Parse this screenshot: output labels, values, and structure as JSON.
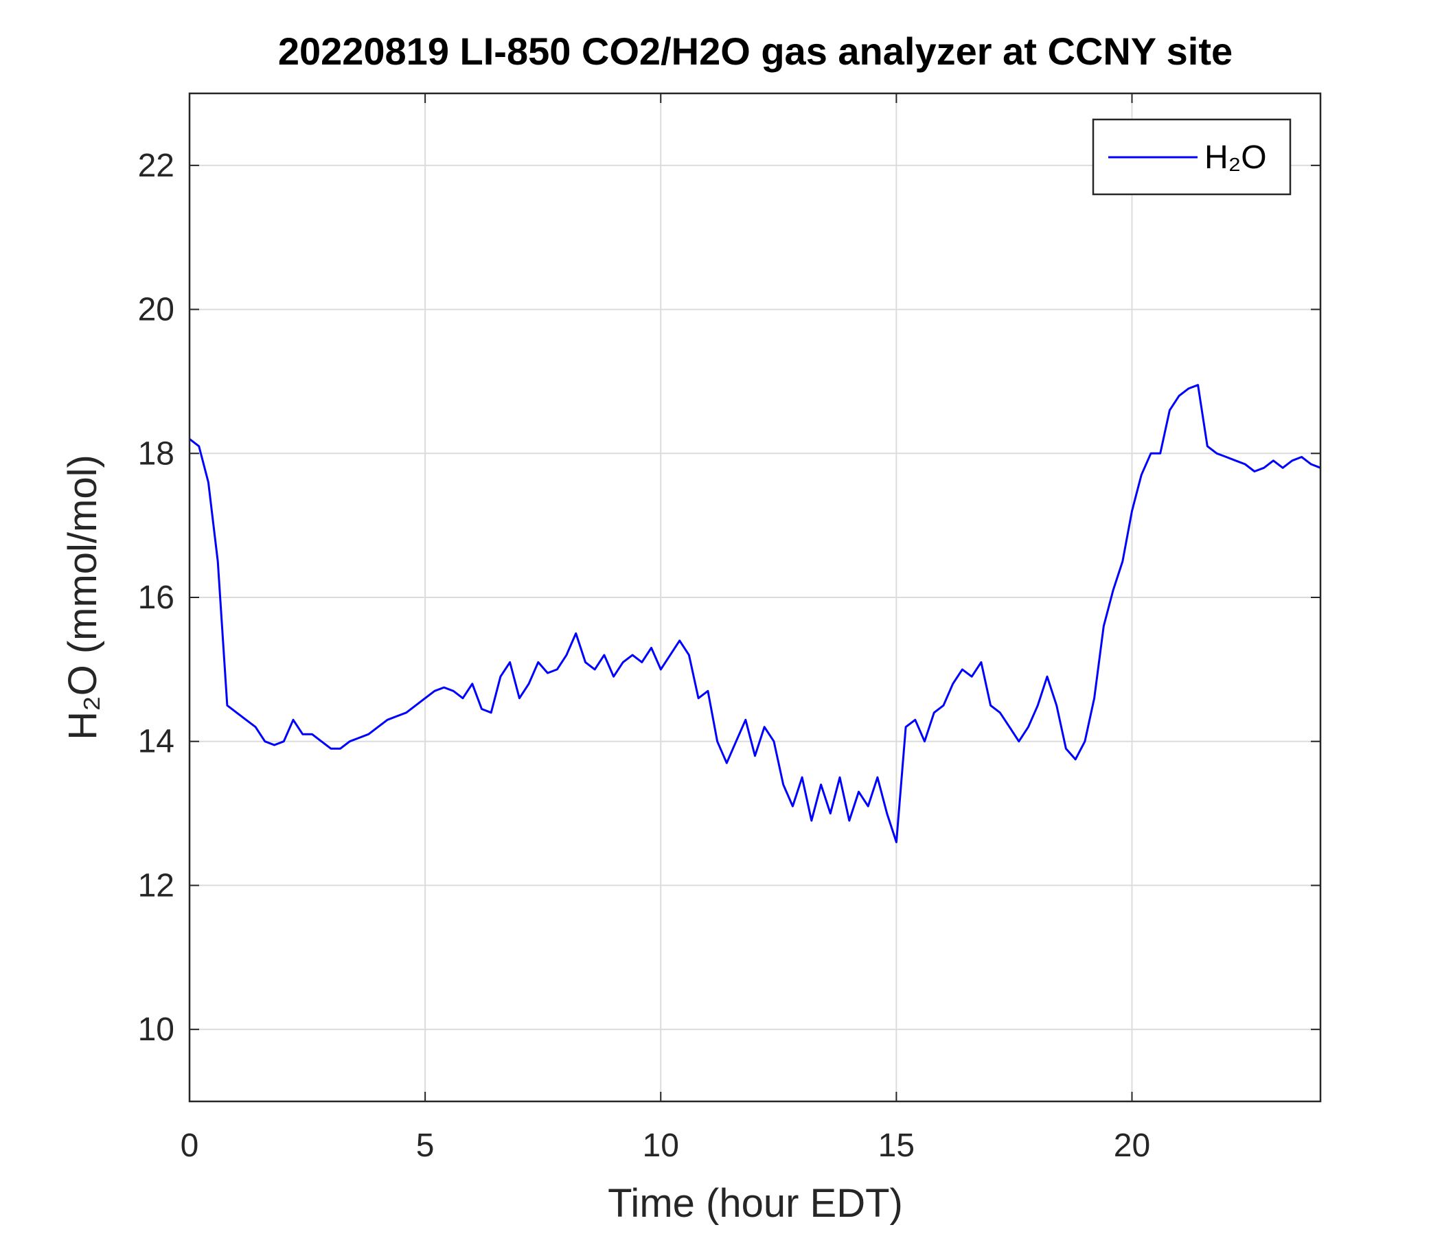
{
  "chart_data": {
    "type": "line",
    "title": "20220819 LI-850 CO2/H2O gas analyzer at CCNY site",
    "xlabel": "Time (hour EDT)",
    "ylabel": "H₂O (mmol/mol)",
    "x": [
      0,
      0.2,
      0.4,
      0.6,
      0.8,
      1,
      1.2,
      1.4,
      1.6,
      1.8,
      2,
      2.2,
      2.4,
      2.6,
      2.8,
      3,
      3.2,
      3.4,
      3.6,
      3.8,
      4,
      4.2,
      4.4,
      4.6,
      4.8,
      5,
      5.2,
      5.4,
      5.6,
      5.8,
      6,
      6.2,
      6.4,
      6.6,
      6.8,
      7,
      7.2,
      7.4,
      7.6,
      7.8,
      8,
      8.2,
      8.4,
      8.6,
      8.8,
      9,
      9.2,
      9.4,
      9.6,
      9.8,
      10,
      10.2,
      10.4,
      10.6,
      10.8,
      11,
      11.2,
      11.4,
      11.6,
      11.8,
      12,
      12.2,
      12.4,
      12.6,
      12.8,
      13,
      13.2,
      13.4,
      13.6,
      13.8,
      14,
      14.2,
      14.4,
      14.6,
      14.8,
      15,
      15.2,
      15.4,
      15.6,
      15.8,
      16,
      16.2,
      16.4,
      16.6,
      16.8,
      17,
      17.2,
      17.4,
      17.6,
      17.8,
      18,
      18.2,
      18.4,
      18.6,
      18.8,
      19,
      19.2,
      19.4,
      19.6,
      19.8,
      20,
      20.2,
      20.4,
      20.6,
      20.8,
      21,
      21.2,
      21.4,
      21.6,
      21.8,
      22,
      22.2,
      22.4,
      22.6,
      22.8,
      23,
      23.2,
      23.4,
      23.6,
      23.8,
      24
    ],
    "series": [
      {
        "name": "H₂O",
        "color": "#0000ff",
        "values": [
          18.2,
          18.1,
          17.6,
          16.5,
          14.5,
          14.4,
          14.3,
          14.2,
          14.0,
          13.95,
          14.0,
          14.3,
          14.1,
          14.1,
          14.0,
          13.9,
          13.9,
          14.0,
          14.05,
          14.1,
          14.2,
          14.3,
          14.35,
          14.4,
          14.5,
          14.6,
          14.7,
          14.75,
          14.7,
          14.6,
          14.8,
          14.45,
          14.4,
          14.9,
          15.1,
          14.6,
          14.8,
          15.1,
          14.95,
          15.0,
          15.2,
          15.5,
          15.1,
          15.0,
          15.2,
          14.9,
          15.1,
          15.2,
          15.1,
          15.3,
          15.0,
          15.2,
          15.4,
          15.2,
          14.6,
          14.7,
          14.0,
          13.7,
          14.0,
          14.3,
          13.8,
          14.2,
          14.0,
          13.4,
          13.1,
          13.5,
          12.9,
          13.4,
          13.0,
          13.5,
          12.9,
          13.3,
          13.1,
          13.5,
          13.0,
          12.6,
          14.2,
          14.3,
          14.0,
          14.4,
          14.5,
          14.8,
          15.0,
          14.9,
          15.1,
          14.5,
          14.4,
          14.2,
          14.0,
          14.2,
          14.5,
          14.9,
          14.5,
          13.9,
          13.75,
          14.0,
          14.6,
          15.6,
          16.1,
          16.5,
          17.2,
          17.7,
          18.0,
          18.0,
          18.6,
          18.8,
          18.9,
          18.95,
          18.1,
          18.0,
          17.95,
          17.9,
          17.85,
          17.75,
          17.8,
          17.9,
          17.8,
          17.9,
          17.95,
          17.85,
          17.8
        ]
      }
    ],
    "xlim": [
      0,
      24
    ],
    "xticks": [
      0,
      5,
      10,
      15,
      20
    ],
    "ylim": [
      9,
      23
    ],
    "yticks": [
      10,
      12,
      14,
      16,
      18,
      20,
      22
    ],
    "grid": true,
    "legend": "upper right"
  }
}
